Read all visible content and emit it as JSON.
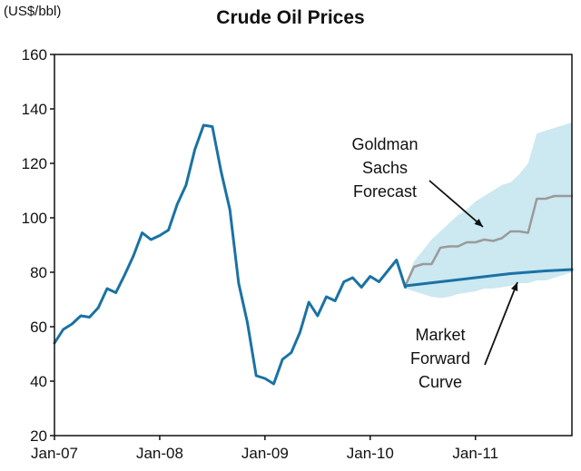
{
  "chart_data": {
    "type": "line",
    "title": "Crude Oil Prices",
    "ylabel": "(US$/bbl)",
    "xlabel": "",
    "ylim": [
      20,
      160
    ],
    "xlim": [
      0,
      59
    ],
    "y_ticks": [
      20,
      40,
      60,
      80,
      100,
      120,
      140,
      160
    ],
    "x_ticks": [
      {
        "label": "Jan-07",
        "month": 0
      },
      {
        "label": "Jan-08",
        "month": 12
      },
      {
        "label": "Jan-09",
        "month": 24
      },
      {
        "label": "Jan-10",
        "month": 36
      },
      {
        "label": "Jan-11",
        "month": 48
      }
    ],
    "colors": {
      "historical": "#1a72a4",
      "forward": "#1a72a4",
      "forecast": "#9a9a9a",
      "band": "#cce8f1",
      "axis": "#111111"
    },
    "series": [
      {
        "name": "Historical",
        "x": [
          0,
          1,
          2,
          3,
          4,
          5,
          6,
          7,
          8,
          9,
          10,
          11,
          12,
          13,
          14,
          15,
          16,
          17,
          18,
          19,
          20,
          21,
          22,
          23,
          24,
          25,
          26,
          27,
          28,
          29,
          30,
          31,
          32,
          33,
          34,
          35,
          36,
          37,
          38,
          39,
          40
        ],
        "values": [
          54,
          59,
          61,
          64,
          63.5,
          67,
          74,
          72.5,
          79,
          86,
          94.5,
          92,
          93.5,
          95.5,
          105,
          112,
          125,
          134,
          133.5,
          117,
          103,
          76,
          61.5,
          42,
          41,
          39,
          48,
          50.5,
          58,
          69,
          64,
          71,
          69.5,
          76.5,
          78,
          74.5,
          78.5,
          76.5,
          80.5,
          84.5,
          74.5
        ]
      },
      {
        "name": "Market Forward Curve",
        "x": [
          40,
          44,
          48,
          52,
          56,
          59
        ],
        "values": [
          75,
          76.5,
          78,
          79.5,
          80.5,
          81
        ]
      },
      {
        "name": "Goldman Sachs Forecast",
        "x": [
          40,
          41,
          42,
          43,
          44,
          45,
          46,
          47,
          48,
          49,
          50,
          51,
          52,
          53,
          54,
          55,
          56,
          57,
          58,
          59
        ],
        "values": [
          75,
          82,
          83,
          83,
          89,
          89.5,
          89.5,
          91,
          91,
          92,
          91.5,
          92.5,
          95,
          95,
          94.5,
          107,
          107,
          108,
          108,
          108
        ]
      },
      {
        "name": "Forecast Band Upper",
        "x": [
          40,
          41,
          42,
          43,
          44,
          45,
          46,
          47,
          48,
          49,
          50,
          51,
          52,
          53,
          54,
          55,
          56,
          57,
          58,
          59
        ],
        "values": [
          76,
          84,
          88,
          92,
          95,
          98,
          101,
          103,
          106,
          108,
          110,
          112,
          113,
          116,
          120,
          131,
          132,
          133,
          134,
          135
        ]
      },
      {
        "name": "Forecast Band Lower",
        "x": [
          40,
          41,
          42,
          43,
          44,
          45,
          46,
          47,
          48,
          49,
          50,
          51,
          52,
          53,
          54,
          55,
          56,
          57,
          58,
          59
        ],
        "values": [
          74,
          73,
          72,
          71,
          70.5,
          71,
          72,
          72.5,
          73,
          74,
          74,
          74.5,
          75,
          76,
          76,
          77,
          77,
          78,
          79,
          80
        ]
      }
    ],
    "annotations": [
      {
        "name": "goldman",
        "lines": [
          "Goldman",
          "Sachs",
          "Forecast"
        ]
      },
      {
        "name": "forward",
        "lines": [
          "Market",
          "Forward",
          "Curve"
        ]
      }
    ]
  }
}
